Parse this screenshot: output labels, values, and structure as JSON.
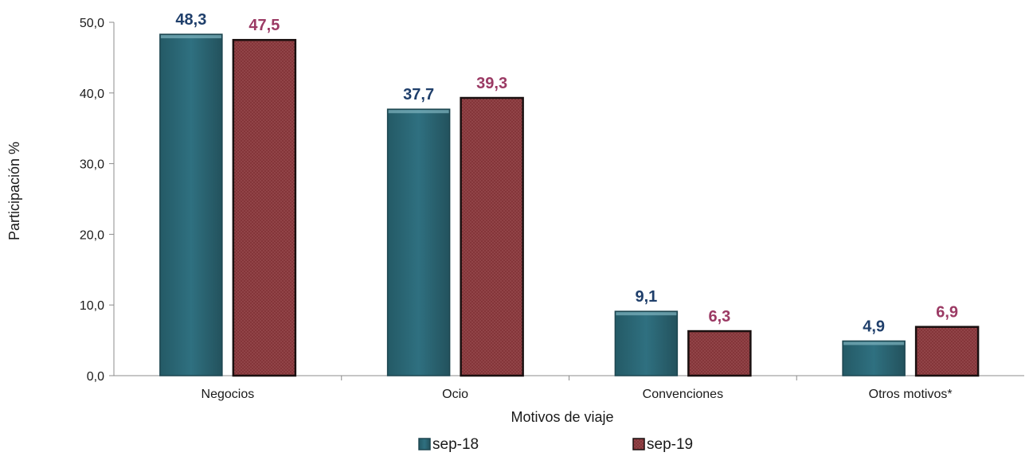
{
  "chart_data": {
    "type": "bar",
    "categories": [
      "Negocios",
      "Ocio",
      "Convenciones",
      "Otros  motivos*"
    ],
    "series": [
      {
        "name": "sep-18",
        "values": [
          48.3,
          37.7,
          9.1,
          4.9
        ],
        "labels": [
          "48,3",
          "37,7",
          "9,1",
          "4,9"
        ],
        "color": "#2e6f7e",
        "label_color": "#1f3f6b"
      },
      {
        "name": "sep-19",
        "values": [
          47.5,
          39.3,
          6.3,
          6.9
        ],
        "labels": [
          "47,5",
          "39,3",
          "6,3",
          "6,9"
        ],
        "color": "#8a3a3e",
        "label_color": "#9b3a64"
      }
    ],
    "xlabel": "Motivos de viaje",
    "ylabel": "Participación %",
    "ylim": [
      0,
      50
    ],
    "yticks": [
      0,
      10,
      20,
      30,
      40,
      50
    ],
    "ytick_labels": [
      "0,0",
      "10,0",
      "20,0",
      "30,0",
      "40,0",
      "50,0"
    ],
    "grid": false,
    "legend_position": "bottom"
  }
}
